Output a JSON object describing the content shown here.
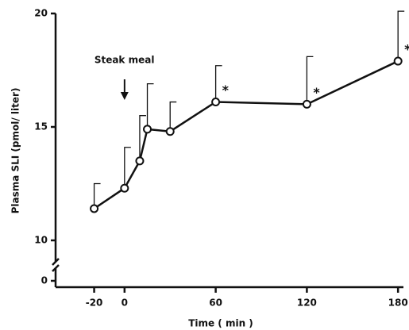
{
  "chart_data": {
    "type": "line",
    "x_label": "Time ( min )",
    "y_label": "Plasma SLI (pmol/ liter)",
    "annotation": "Steak meal",
    "annotation_x": 0,
    "x": [
      -20,
      0,
      10,
      15,
      30,
      60,
      120,
      180
    ],
    "series": [
      {
        "color": "#111111",
        "values": [
          11.4,
          12.3,
          13.5,
          14.9,
          14.8,
          16.1,
          16.0,
          17.9
        ],
        "errors": [
          1.1,
          1.8,
          2.0,
          2.0,
          1.3,
          1.6,
          2.1,
          2.2
        ],
        "markers": [
          null,
          null,
          null,
          null,
          null,
          "*",
          "*",
          "*"
        ]
      }
    ],
    "xlim": [
      -25,
      182
    ],
    "xticks": [
      -20,
      0,
      60,
      120,
      180
    ],
    "ylim": [
      10,
      20
    ],
    "yticks": [
      0,
      10,
      15,
      20
    ],
    "axis_break": true
  }
}
